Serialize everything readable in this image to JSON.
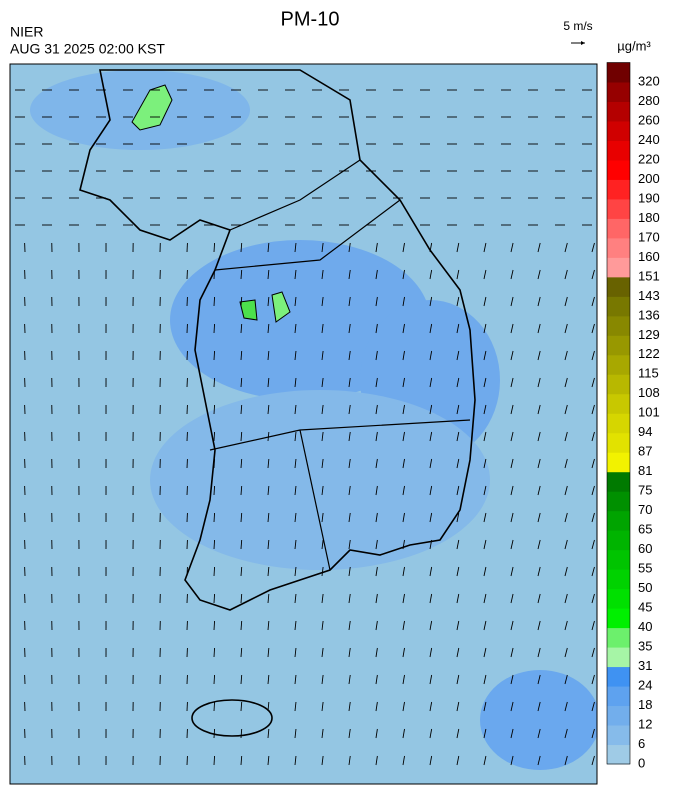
{
  "header": {
    "title": "PM-10",
    "agency": "NIER",
    "datetime": "AUG 31 2025 02:00 KST",
    "wind_scale": "5 m/s",
    "unit": "µg/m³"
  },
  "colorbar": {
    "ticks": [
      0,
      6,
      12,
      18,
      24,
      31,
      35,
      40,
      45,
      50,
      55,
      60,
      65,
      70,
      75,
      81,
      87,
      94,
      101,
      108,
      115,
      122,
      129,
      136,
      143,
      151,
      160,
      170,
      180,
      190,
      200,
      220,
      240,
      260,
      280,
      320
    ],
    "colors": [
      "#9fcbe6",
      "#86bbea",
      "#72aeec",
      "#5ea2ef",
      "#3f92f2",
      "#a6f5a6",
      "#6cf06c",
      "#00f000",
      "#00e000",
      "#00d200",
      "#00c400",
      "#00b400",
      "#00a400",
      "#009000",
      "#007a00",
      "#f2f200",
      "#e2e200",
      "#d6d600",
      "#c8c800",
      "#b8b800",
      "#a8a800",
      "#989800",
      "#888800",
      "#787800",
      "#686200",
      "#ff9a9a",
      "#ff8080",
      "#ff6666",
      "#ff4444",
      "#ff2222",
      "#ff0000",
      "#e80000",
      "#d00000",
      "#b40000",
      "#960000",
      "#700000"
    ]
  }
}
